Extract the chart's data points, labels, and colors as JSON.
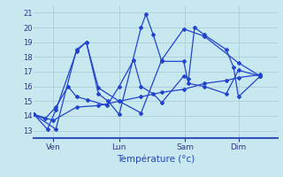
{
  "background_color": "#c8e8f0",
  "grid_color": "#b0d0dc",
  "line_color": "#2244cc",
  "xlabel": "Température (°c)",
  "ylim": [
    12.5,
    21.5
  ],
  "yticks": [
    13,
    14,
    15,
    16,
    17,
    18,
    19,
    20,
    21
  ],
  "xtick_labels": [
    "Ven",
    "Lun",
    "Sam",
    "Dim"
  ],
  "xtick_positions": [
    0.08,
    0.35,
    0.62,
    0.84
  ],
  "series": [
    {
      "x": [
        0.0,
        0.08,
        0.175,
        0.265,
        0.35,
        0.44,
        0.525,
        0.615,
        0.7,
        0.79,
        0.84,
        0.93
      ],
      "y": [
        14.1,
        13.7,
        14.6,
        14.7,
        15.0,
        15.3,
        15.6,
        15.8,
        16.2,
        16.4,
        16.6,
        16.8
      ]
    },
    {
      "x": [
        0.0,
        0.055,
        0.09,
        0.175,
        0.215,
        0.265,
        0.305,
        0.35,
        0.44,
        0.46,
        0.49,
        0.525,
        0.615,
        0.635,
        0.7,
        0.79,
        0.84,
        0.93
      ],
      "y": [
        14.1,
        13.1,
        14.4,
        18.4,
        19.0,
        15.5,
        15.0,
        14.1,
        20.0,
        20.9,
        19.5,
        17.7,
        17.7,
        16.2,
        16.0,
        15.5,
        17.1,
        16.7
      ]
    },
    {
      "x": [
        0.0,
        0.045,
        0.09,
        0.14,
        0.175,
        0.22,
        0.3,
        0.35,
        0.41,
        0.44,
        0.49,
        0.525,
        0.615,
        0.635,
        0.66,
        0.7,
        0.79,
        0.82,
        0.84,
        0.93
      ],
      "y": [
        14.1,
        13.8,
        14.6,
        16.0,
        15.3,
        15.1,
        14.7,
        16.0,
        17.8,
        16.0,
        15.5,
        14.9,
        16.7,
        16.5,
        20.0,
        19.5,
        18.5,
        17.3,
        15.3,
        16.7
      ]
    },
    {
      "x": [
        0.0,
        0.09,
        0.175,
        0.215,
        0.265,
        0.35,
        0.44,
        0.525,
        0.615,
        0.7,
        0.84,
        0.93
      ],
      "y": [
        14.1,
        13.1,
        18.5,
        19.0,
        15.9,
        15.0,
        14.2,
        17.8,
        19.9,
        19.4,
        17.6,
        16.7
      ]
    }
  ]
}
